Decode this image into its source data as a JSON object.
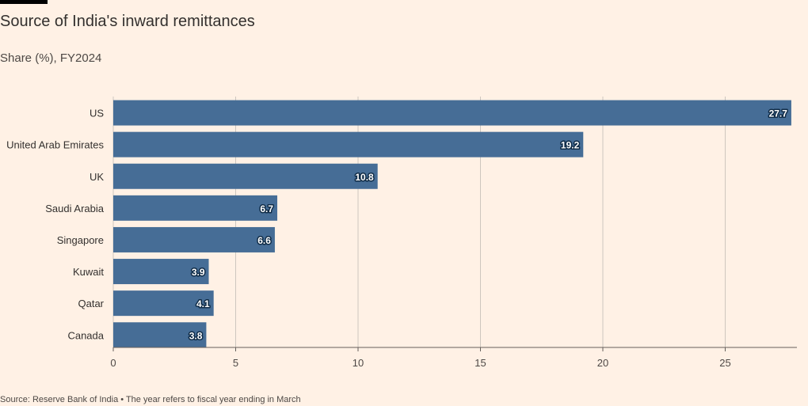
{
  "header": {
    "title": "Source of India's inward remittances",
    "subtitle": "Share (%), FY2024"
  },
  "footer": {
    "source": "Source: Reserve Bank of India • The year refers to fiscal year ending in March"
  },
  "colors": {
    "background": "#FFF1E5",
    "bar": "#466D96",
    "grid": "#CEC6BE"
  },
  "chart_data": {
    "type": "bar",
    "orientation": "horizontal",
    "title": "Source of India's inward remittances",
    "subtitle": "Share (%), FY2024",
    "categories": [
      "US",
      "United Arab Emirates",
      "UK",
      "Saudi Arabia",
      "Singapore",
      "Kuwait",
      "Qatar",
      "Canada"
    ],
    "values": [
      27.7,
      19.2,
      10.8,
      6.7,
      6.6,
      3.9,
      4.1,
      3.8
    ],
    "value_labels": [
      "27.7",
      "19.2",
      "10.8",
      "6.7",
      "6.6",
      "3.9",
      "4.1",
      "3.8"
    ],
    "xlim": [
      0,
      28
    ],
    "xticks": [
      0,
      5,
      10,
      15,
      20,
      25
    ],
    "grid": true,
    "legend": "none"
  }
}
